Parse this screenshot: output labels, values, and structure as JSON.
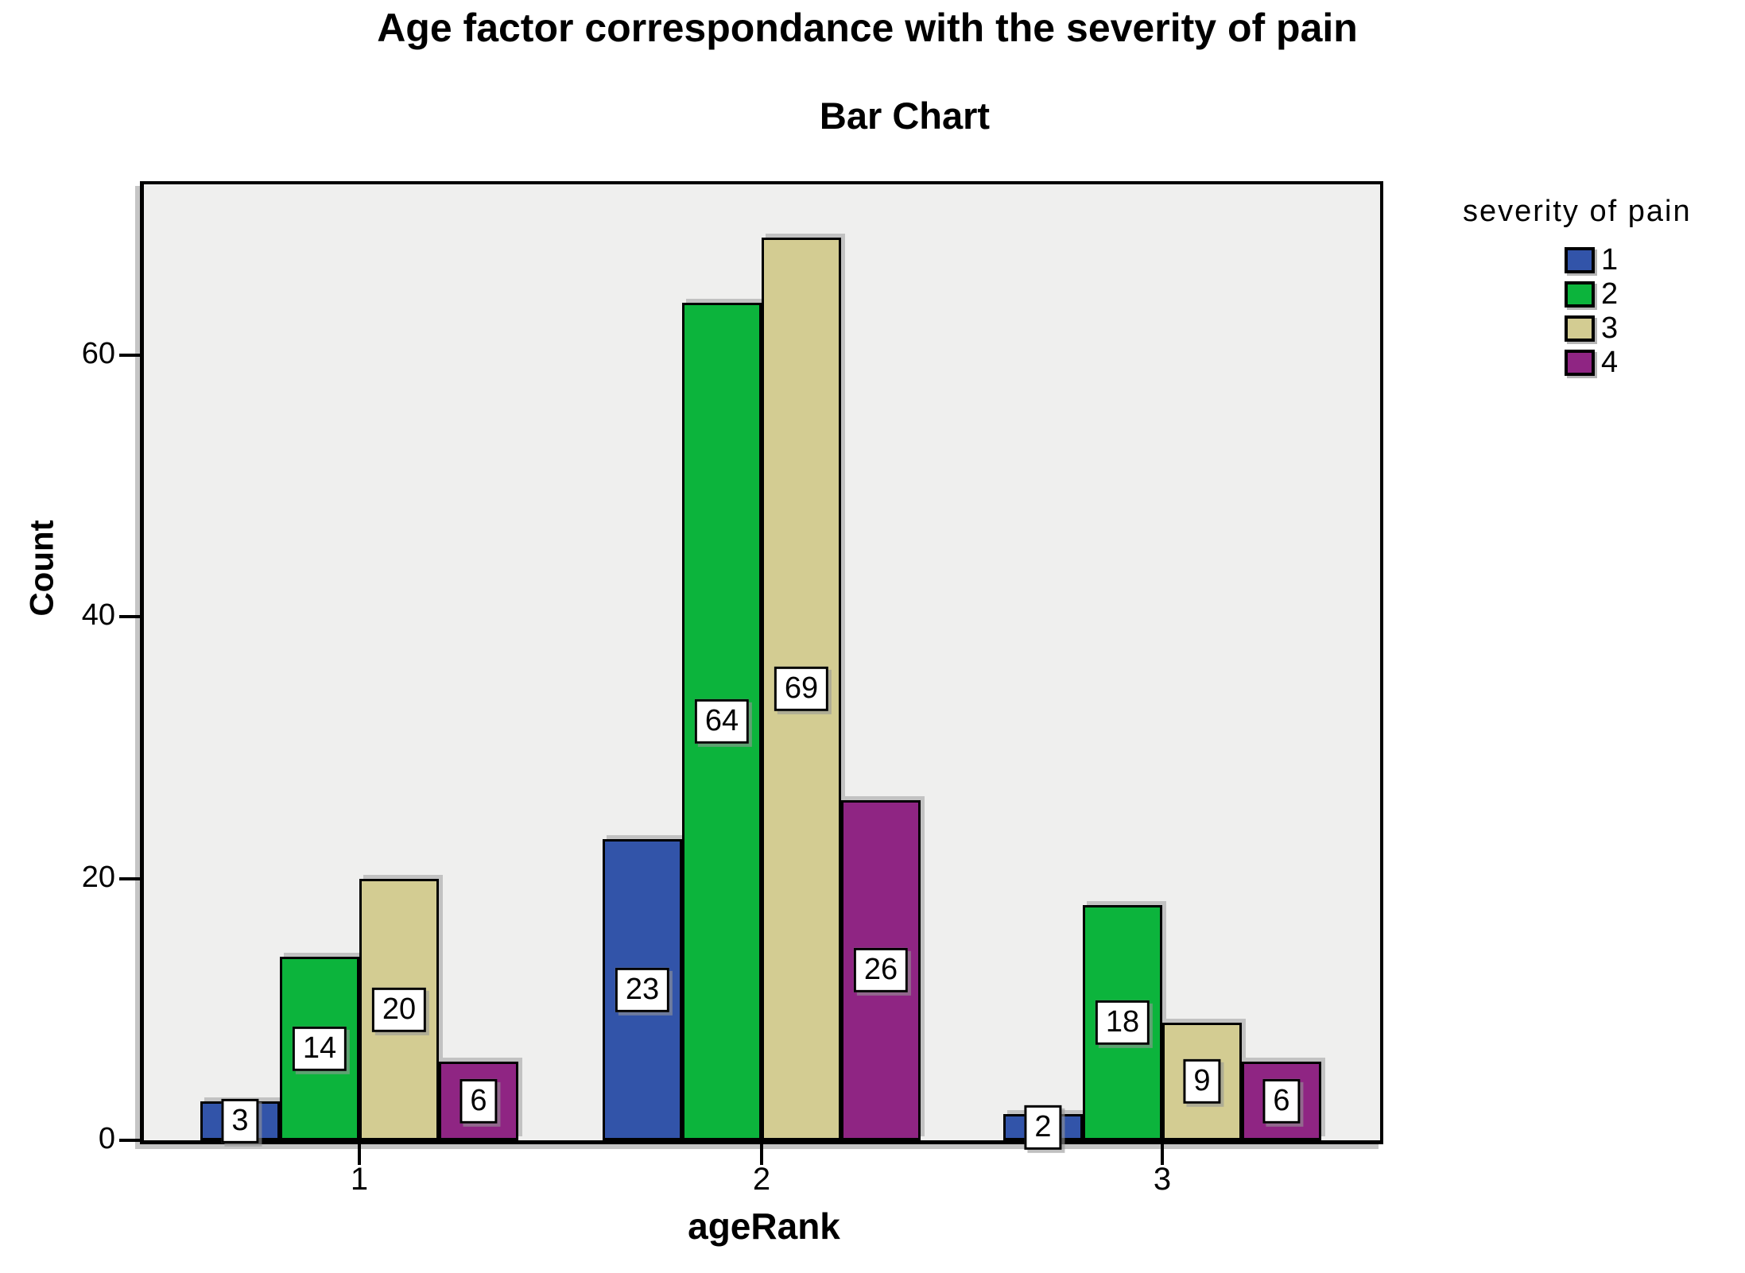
{
  "chart_data": {
    "type": "bar",
    "title": "Age factor correspondance with the severity of pain",
    "subtitle": "Bar Chart",
    "xlabel": "ageRank",
    "ylabel": "Count",
    "legend_title": "severity of pain",
    "legend_position": "right",
    "categories": [
      "1",
      "2",
      "3"
    ],
    "series": [
      {
        "name": "1",
        "color": "#3254a9",
        "values": [
          3,
          23,
          2
        ]
      },
      {
        "name": "2",
        "color": "#0cb43c",
        "values": [
          14,
          64,
          18
        ]
      },
      {
        "name": "3",
        "color": "#d3cc92",
        "values": [
          20,
          69,
          9
        ]
      },
      {
        "name": "4",
        "color": "#8f2583",
        "values": [
          6,
          26,
          6
        ]
      }
    ],
    "bar_value_labels": [
      [
        3,
        23,
        2
      ],
      [
        14,
        64,
        18
      ],
      [
        20,
        69,
        9
      ],
      [
        6,
        26,
        6
      ]
    ],
    "yticks": [
      0,
      20,
      40,
      60
    ],
    "ylim": [
      0,
      73
    ],
    "grid": false,
    "plot_background": "#efefee"
  }
}
